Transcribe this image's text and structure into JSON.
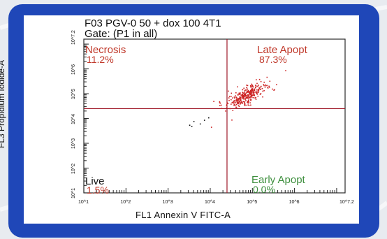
{
  "chart_data": {
    "type": "scatter",
    "title": "F03 PGV-0 50 + dox 100 4T1",
    "subtitle": "Gate: (P1 in all)",
    "xlabel": "FL1 Annexin V FITC-A",
    "ylabel": "FL3 Propidium Iodide-A",
    "x_scale": "log",
    "y_scale": "log",
    "xlim": [
      10,
      15848931.9
    ],
    "ylim": [
      10,
      15848931.9
    ],
    "x_ticks": [
      {
        "label": "10^1",
        "value": 10
      },
      {
        "label": "10^2",
        "value": 100
      },
      {
        "label": "10^3",
        "value": 1000
      },
      {
        "label": "10^4",
        "value": 10000
      },
      {
        "label": "10^5",
        "value": 100000
      },
      {
        "label": "10^6",
        "value": 1000000
      },
      {
        "label": "10^7.2",
        "value": 15848931.9
      }
    ],
    "y_ticks": [
      {
        "label": "10^1",
        "value": 10
      },
      {
        "label": "10^2",
        "value": 100
      },
      {
        "label": "10^3",
        "value": 1000
      },
      {
        "label": "10^4",
        "value": 10000
      },
      {
        "label": "10^5",
        "value": 100000
      },
      {
        "label": "10^6",
        "value": 1000000
      },
      {
        "label": "10^7.2",
        "value": 15848931.9
      }
    ],
    "quadrant_gate": {
      "x": 25000,
      "y": 25000
    },
    "quadrants": {
      "upper_left": {
        "name": "Necrosis",
        "value": "11.2%"
      },
      "upper_right": {
        "name": "Late Apopt",
        "value": "87.3%"
      },
      "lower_left": {
        "name": "Live",
        "value": "1.5%"
      },
      "lower_right": {
        "name": "Early Apopt",
        "value": "0.0%"
      }
    },
    "population": {
      "center_log_x": 4.85,
      "center_log_y": 4.95,
      "spread_major": 0.35,
      "spread_minor": 0.13,
      "angle_deg": 45,
      "points": 320
    },
    "outliers_log": [
      [
        3.5,
        3.75
      ],
      [
        3.6,
        3.9
      ],
      [
        3.75,
        3.8
      ],
      [
        3.95,
        4.05
      ],
      [
        3.55,
        3.7
      ],
      [
        3.85,
        3.95
      ]
    ],
    "colors": {
      "points": "#cc2222",
      "gate_lines": "#a01a2a",
      "frame": "#1f47b8"
    }
  }
}
